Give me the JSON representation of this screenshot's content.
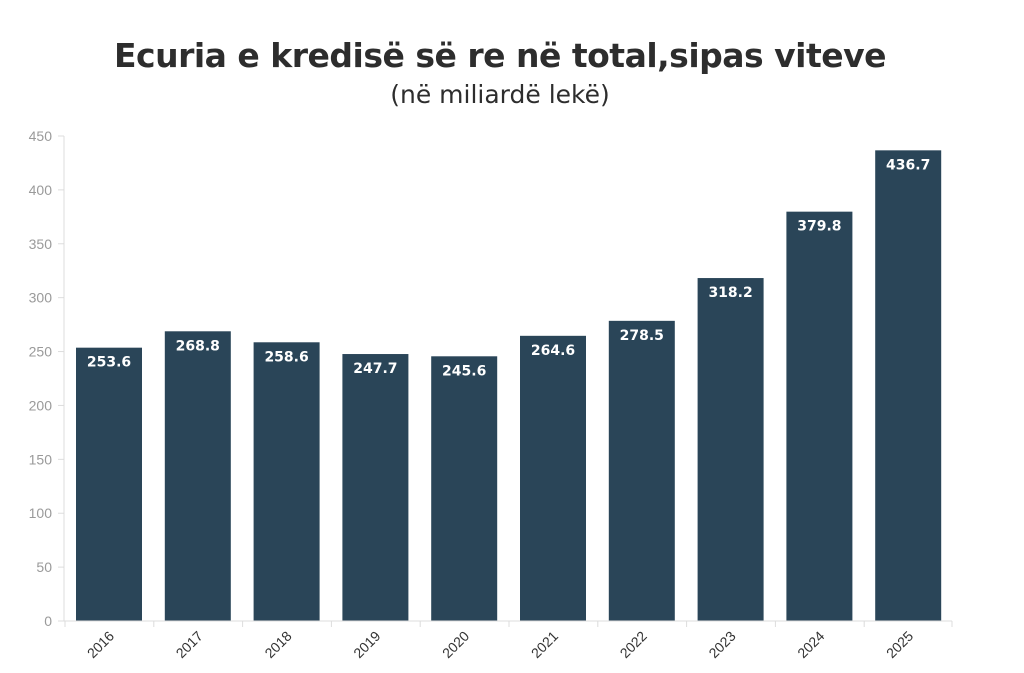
{
  "chart_data": {
    "type": "bar",
    "title": "Ecuria e kredisë së re në total,sipas viteve",
    "subtitle": "(në miliardë lekë)",
    "categories": [
      "2016",
      "2017",
      "2018",
      "2019",
      "2020",
      "2021",
      "2022",
      "2023",
      "2024",
      "2025"
    ],
    "values": [
      253.6,
      268.8,
      258.6,
      247.7,
      245.6,
      264.6,
      278.5,
      318.2,
      379.8,
      436.7
    ],
    "data_labels": [
      "253.6",
      "268.8",
      "258.6",
      "247.7",
      "245.6",
      "264.6",
      "278.5",
      "318.2",
      "379.8",
      "436.7"
    ],
    "ylim": [
      0,
      450
    ],
    "yticks": [
      0,
      50,
      100,
      150,
      200,
      250,
      300,
      350,
      400,
      450
    ],
    "xlabel": "",
    "ylabel": "",
    "grid": false,
    "legend": "none",
    "bar_color": "#2a4558"
  }
}
